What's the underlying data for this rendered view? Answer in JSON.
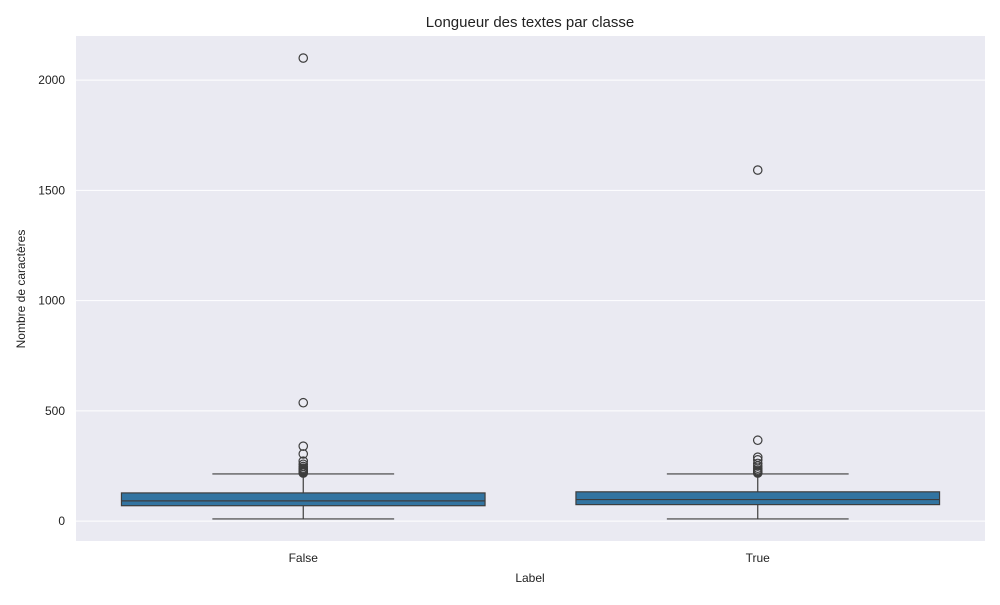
{
  "chart_data": {
    "type": "box",
    "title": "Longueur des textes par classe",
    "xlabel": "Label",
    "ylabel": "Nombre de caractères",
    "ylim": [
      -90,
      2200
    ],
    "yticks": [
      0,
      500,
      1000,
      1500,
      2000
    ],
    "grid": true,
    "categories": [
      "False",
      "True"
    ],
    "boxes": [
      {
        "category": "False",
        "whislo": 10,
        "q1": 70,
        "median": 92,
        "q3": 128,
        "whishi": 214,
        "fliers": [
          218,
          222,
          226,
          230,
          235,
          240,
          248,
          258,
          272,
          305,
          340,
          537,
          2100
        ]
      },
      {
        "category": "True",
        "whislo": 10,
        "q1": 75,
        "median": 98,
        "q3": 133,
        "whishi": 214,
        "fliers": [
          218,
          222,
          226,
          232,
          240,
          250,
          262,
          278,
          290,
          367,
          1592
        ]
      }
    ],
    "colors": {
      "box_fill": "#3274a1",
      "line": "#3d3d3d",
      "plot_bg": "#eaeaf2",
      "grid": "#ffffff"
    }
  }
}
